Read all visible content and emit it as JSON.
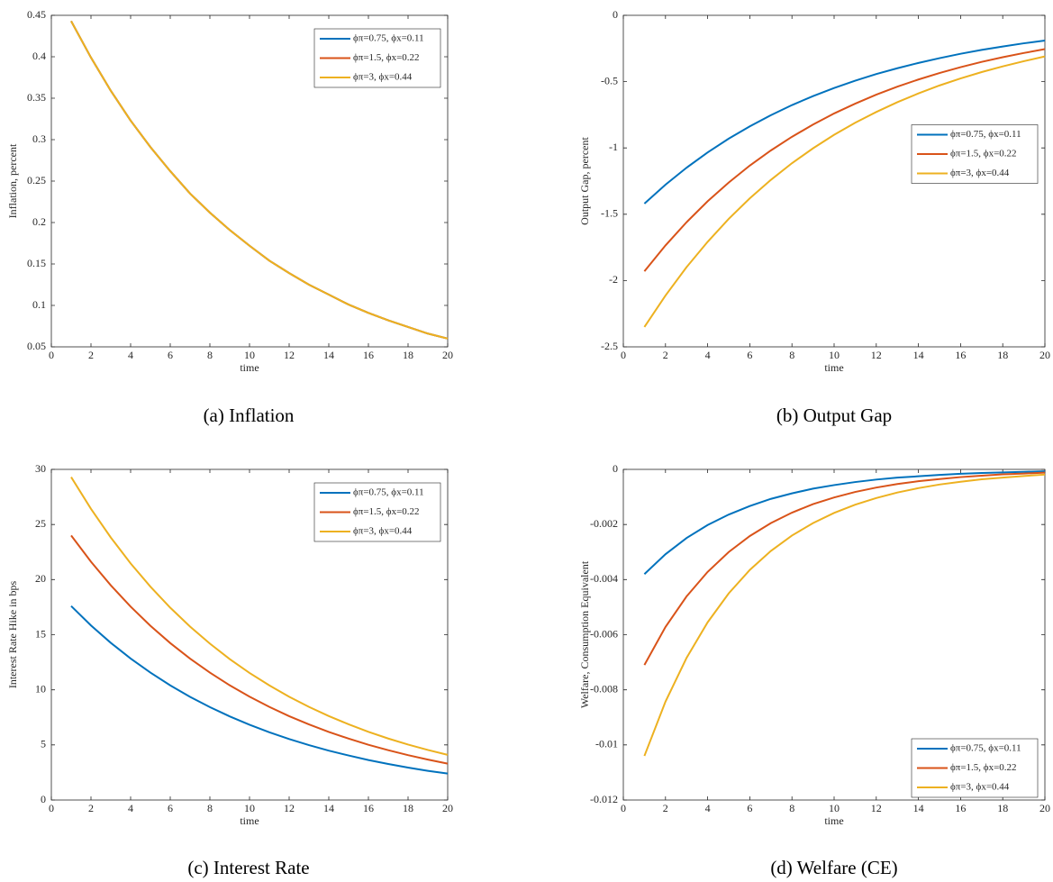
{
  "chart_data": [
    {
      "type": "line",
      "caption": "(a) Inflation",
      "x_label": "time",
      "y_label": "Inflation, percent",
      "x": [
        1,
        2,
        3,
        4,
        5,
        6,
        7,
        8,
        9,
        10,
        11,
        12,
        13,
        14,
        15,
        16,
        17,
        18,
        19,
        20
      ],
      "xlim": [
        0,
        20
      ],
      "xticks": [
        0,
        2,
        4,
        6,
        8,
        10,
        12,
        14,
        16,
        18,
        20
      ],
      "ylim": [
        0.05,
        0.45
      ],
      "yticks": [
        0.05,
        0.1,
        0.15,
        0.2,
        0.25,
        0.3,
        0.35,
        0.4,
        0.45
      ],
      "legend": "northeast",
      "series": [
        {
          "name": "ϕπ=0.75, ϕx=0.11",
          "color": "#0072BD",
          "values": [
            0.443,
            0.399,
            0.359,
            0.323,
            0.291,
            0.262,
            0.235,
            0.212,
            0.191,
            0.172,
            0.154,
            0.139,
            0.125,
            0.113,
            0.101,
            0.091,
            0.082,
            0.074,
            0.066,
            0.06
          ]
        },
        {
          "name": "ϕπ=1.5, ϕx=0.22",
          "color": "#D95319",
          "values": [
            0.443,
            0.399,
            0.359,
            0.323,
            0.291,
            0.262,
            0.235,
            0.212,
            0.191,
            0.172,
            0.154,
            0.139,
            0.125,
            0.113,
            0.101,
            0.091,
            0.082,
            0.074,
            0.066,
            0.06
          ]
        },
        {
          "name": "ϕπ=3, ϕx=0.44",
          "color": "#EDB120",
          "values": [
            0.443,
            0.399,
            0.359,
            0.323,
            0.291,
            0.262,
            0.235,
            0.212,
            0.191,
            0.172,
            0.154,
            0.139,
            0.125,
            0.113,
            0.101,
            0.091,
            0.082,
            0.074,
            0.066,
            0.06
          ]
        }
      ]
    },
    {
      "type": "line",
      "caption": "(b) Output Gap",
      "x_label": "time",
      "y_label": "Output Gap, percent",
      "x": [
        1,
        2,
        3,
        4,
        5,
        6,
        7,
        8,
        9,
        10,
        11,
        12,
        13,
        14,
        15,
        16,
        17,
        18,
        19,
        20
      ],
      "xlim": [
        0,
        20
      ],
      "xticks": [
        0,
        2,
        4,
        6,
        8,
        10,
        12,
        14,
        16,
        18,
        20
      ],
      "ylim": [
        -2.5,
        0
      ],
      "yticks": [
        -2.5,
        -2,
        -1.5,
        -1,
        -0.5,
        0
      ],
      "legend": "east",
      "series": [
        {
          "name": "ϕπ=0.75, ϕx=0.11",
          "color": "#0072BD",
          "values": [
            -1.42,
            -1.277,
            -1.149,
            -1.034,
            -0.93,
            -0.837,
            -0.753,
            -0.677,
            -0.609,
            -0.548,
            -0.493,
            -0.443,
            -0.399,
            -0.359,
            -0.323,
            -0.29,
            -0.261,
            -0.235,
            -0.211,
            -0.19
          ]
        },
        {
          "name": "ϕπ=1.5, ϕx=0.22",
          "color": "#D95319",
          "values": [
            -1.93,
            -1.735,
            -1.56,
            -1.402,
            -1.261,
            -1.133,
            -1.019,
            -0.916,
            -0.824,
            -0.74,
            -0.666,
            -0.598,
            -0.538,
            -0.484,
            -0.435,
            -0.391,
            -0.351,
            -0.316,
            -0.284,
            -0.255
          ]
        },
        {
          "name": "ϕπ=3, ϕx=0.44",
          "color": "#EDB120",
          "values": [
            -2.35,
            -2.113,
            -1.899,
            -1.708,
            -1.535,
            -1.38,
            -1.241,
            -1.115,
            -1.003,
            -0.901,
            -0.81,
            -0.729,
            -0.655,
            -0.589,
            -0.529,
            -0.476,
            -0.428,
            -0.385,
            -0.346,
            -0.31
          ]
        }
      ]
    },
    {
      "type": "line",
      "caption": "(c) Interest Rate",
      "x_label": "time",
      "y_label": "Interest Rate Hike in bps",
      "x": [
        1,
        2,
        3,
        4,
        5,
        6,
        7,
        8,
        9,
        10,
        11,
        12,
        13,
        14,
        15,
        16,
        17,
        18,
        19,
        20
      ],
      "xlim": [
        0,
        20
      ],
      "xticks": [
        0,
        2,
        4,
        6,
        8,
        10,
        12,
        14,
        16,
        18,
        20
      ],
      "ylim": [
        0,
        30
      ],
      "yticks": [
        0,
        5,
        10,
        15,
        20,
        25,
        30
      ],
      "legend": "northeast",
      "series": [
        {
          "name": "ϕπ=0.75, ϕx=0.11",
          "color": "#0072BD",
          "values": [
            17.6,
            15.84,
            14.26,
            12.84,
            11.56,
            10.4,
            9.36,
            8.43,
            7.59,
            6.83,
            6.15,
            5.53,
            4.98,
            4.48,
            4.04,
            3.63,
            3.27,
            2.94,
            2.65,
            2.4
          ]
        },
        {
          "name": "ϕπ=1.5, ϕx=0.22",
          "color": "#D95319",
          "values": [
            24,
            21.62,
            19.48,
            17.55,
            15.81,
            14.24,
            12.83,
            11.56,
            10.41,
            9.38,
            8.45,
            7.61,
            6.86,
            6.18,
            5.57,
            5.01,
            4.52,
            4.07,
            3.67,
            3.3
          ]
        },
        {
          "name": "ϕπ=3, ϕx=0.44",
          "color": "#EDB120",
          "values": [
            29.3,
            26.42,
            23.82,
            21.47,
            19.36,
            17.45,
            15.74,
            14.19,
            12.79,
            11.53,
            10.4,
            9.37,
            8.45,
            7.62,
            6.87,
            6.19,
            5.58,
            5.03,
            4.54,
            4.1
          ]
        }
      ]
    },
    {
      "type": "line",
      "caption": "(d) Welfare (CE)",
      "x_label": "time",
      "y_label": "Welfare, Consumption Equivalent",
      "x": [
        1,
        2,
        3,
        4,
        5,
        6,
        7,
        8,
        9,
        10,
        11,
        12,
        13,
        14,
        15,
        16,
        17,
        18,
        19,
        20
      ],
      "xlim": [
        0,
        20
      ],
      "xticks": [
        0,
        2,
        4,
        6,
        8,
        10,
        12,
        14,
        16,
        18,
        20
      ],
      "ylim": [
        -0.012,
        0
      ],
      "yticks": [
        -0.012,
        -0.01,
        -0.008,
        -0.006,
        -0.004,
        -0.002,
        0
      ],
      "legend": "southeast",
      "series": [
        {
          "name": "ϕπ=0.75, ϕx=0.11",
          "color": "#0072BD",
          "values": [
            -0.0038,
            -0.00308,
            -0.00249,
            -0.00202,
            -0.00164,
            -0.00133,
            -0.00107,
            -0.00087,
            -0.0007,
            -0.00057,
            -0.00046,
            -0.00037,
            -0.0003,
            -0.00025,
            -0.0002,
            -0.00016,
            -0.00013,
            -0.00011,
            -9e-05,
            -7e-05
          ]
        },
        {
          "name": "ϕπ=1.5, ϕx=0.22",
          "color": "#D95319",
          "values": [
            -0.0071,
            -0.00572,
            -0.00461,
            -0.00372,
            -0.003,
            -0.00242,
            -0.00195,
            -0.00157,
            -0.00126,
            -0.00102,
            -0.00082,
            -0.00066,
            -0.00053,
            -0.00043,
            -0.00035,
            -0.00028,
            -0.00023,
            -0.00018,
            -0.00015,
            -0.00012
          ]
        },
        {
          "name": "ϕπ=3, ϕx=0.44",
          "color": "#EDB120",
          "values": [
            -0.0104,
            -0.00843,
            -0.00684,
            -0.00555,
            -0.0045,
            -0.00365,
            -0.00296,
            -0.0024,
            -0.00195,
            -0.00158,
            -0.00128,
            -0.00104,
            -0.00084,
            -0.00068,
            -0.00055,
            -0.00045,
            -0.00036,
            -0.0003,
            -0.00024,
            -0.00019
          ]
        }
      ]
    }
  ]
}
